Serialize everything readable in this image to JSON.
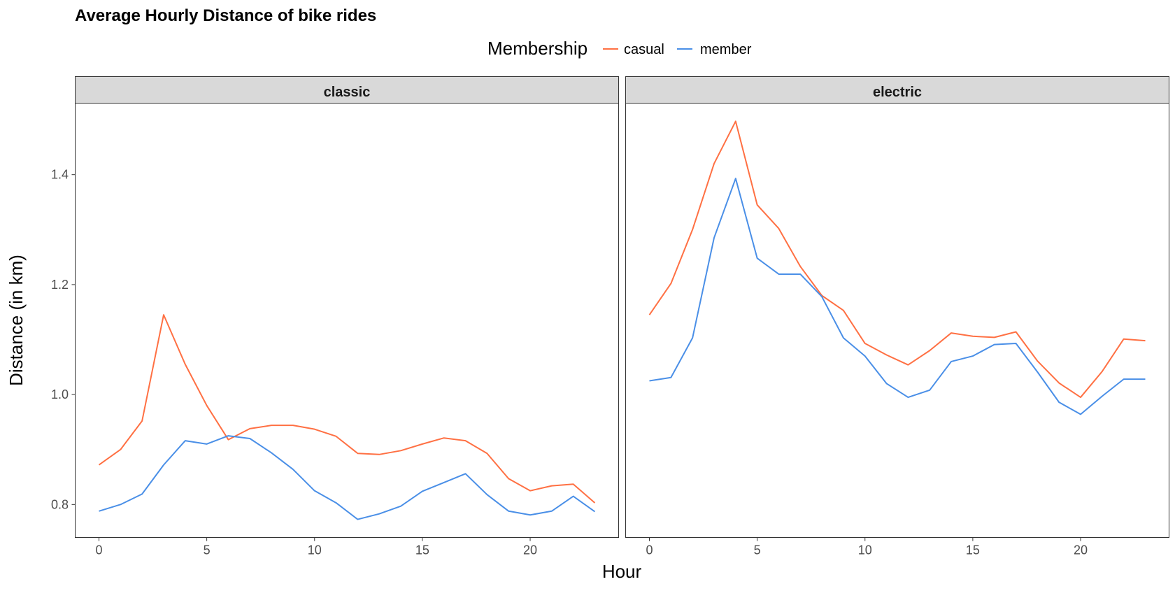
{
  "chart_data": {
    "type": "line",
    "title": "Average Hourly Distance of bike rides",
    "xlabel": "Hour",
    "ylabel": "Distance (in km)",
    "legend": {
      "title": "Membership",
      "position": "top",
      "entries": [
        {
          "name": "casual",
          "color": "#FF7043"
        },
        {
          "name": "member",
          "color": "#4A8FE7"
        }
      ]
    },
    "xlim": [
      0,
      23
    ],
    "ylim": [
      0.74,
      1.53
    ],
    "x_ticks": [
      0,
      5,
      10,
      15,
      20
    ],
    "y_ticks": [
      0.8,
      1.0,
      1.2,
      1.4
    ],
    "y_tick_labels": [
      "0.8",
      "1.0",
      "1.2",
      "1.4"
    ],
    "grid": false,
    "x": [
      0,
      1,
      2,
      3,
      4,
      5,
      6,
      7,
      8,
      9,
      10,
      11,
      12,
      13,
      14,
      15,
      16,
      17,
      18,
      19,
      20,
      21,
      22,
      23
    ],
    "facets": [
      {
        "label": "classic",
        "series": [
          {
            "name": "casual",
            "values": [
              0.872,
              0.9,
              0.952,
              1.145,
              1.055,
              0.98,
              0.918,
              0.938,
              0.944,
              0.944,
              0.937,
              0.924,
              0.893,
              0.891,
              0.898,
              0.91,
              0.921,
              0.916,
              0.893,
              0.847,
              0.825,
              0.834,
              0.837,
              0.803
            ]
          },
          {
            "name": "member",
            "values": [
              0.788,
              0.8,
              0.819,
              0.872,
              0.916,
              0.91,
              0.925,
              0.92,
              0.894,
              0.864,
              0.825,
              0.803,
              0.773,
              0.783,
              0.797,
              0.824,
              0.84,
              0.856,
              0.818,
              0.788,
              0.781,
              0.788,
              0.815,
              0.787
            ]
          }
        ]
      },
      {
        "label": "electric",
        "series": [
          {
            "name": "casual",
            "values": [
              1.145,
              1.202,
              1.3,
              1.42,
              1.497,
              1.345,
              1.302,
              1.233,
              1.18,
              1.153,
              1.093,
              1.072,
              1.054,
              1.08,
              1.112,
              1.106,
              1.104,
              1.114,
              1.061,
              1.021,
              0.995,
              1.042,
              1.101,
              1.098
            ]
          },
          {
            "name": "member",
            "values": [
              1.025,
              1.031,
              1.103,
              1.285,
              1.393,
              1.248,
              1.219,
              1.219,
              1.178,
              1.103,
              1.07,
              1.02,
              0.995,
              1.008,
              1.06,
              1.07,
              1.091,
              1.093,
              1.041,
              0.986,
              0.964,
              0.997,
              1.028,
              1.028
            ]
          }
        ]
      }
    ]
  }
}
